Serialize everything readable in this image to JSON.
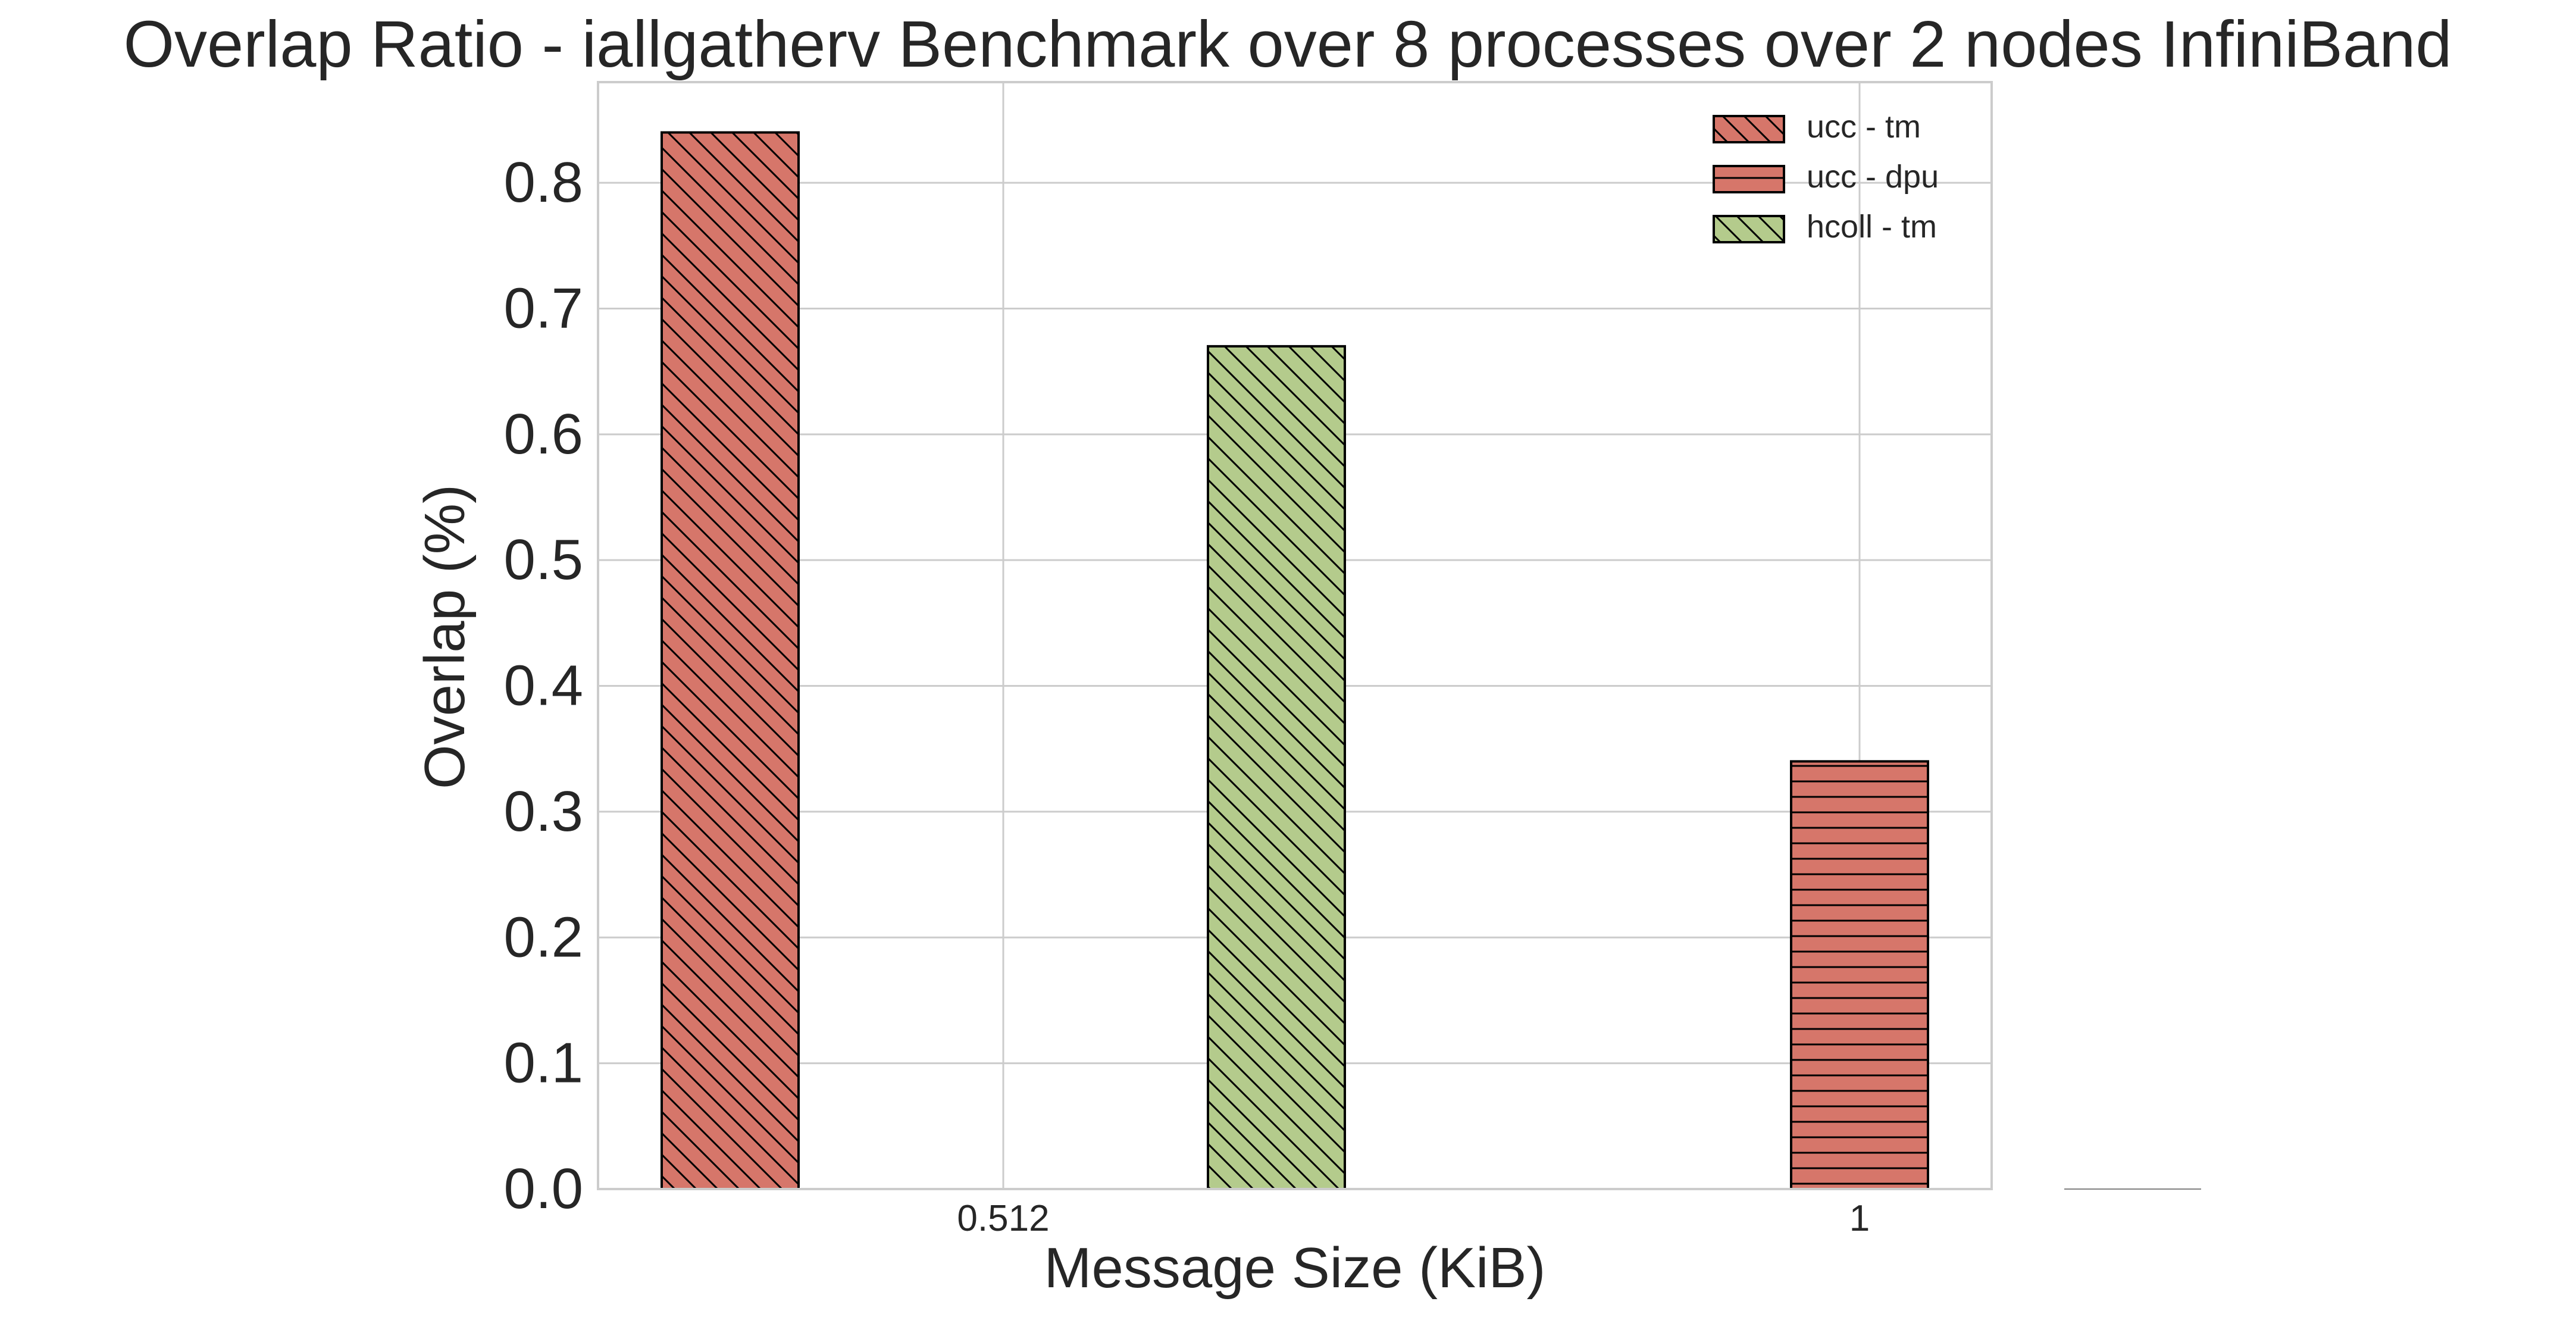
{
  "chart_data": {
    "type": "bar",
    "title": "Overlap Ratio - iallgatherv Benchmark over 8 processes over 2 nodes InfiniBand",
    "xlabel": "Message Size (KiB)",
    "ylabel": "Overlap (%)",
    "categories": [
      "0.512",
      "1"
    ],
    "ylim": [
      0,
      0.88
    ],
    "yticks": [
      "0.0",
      "0.1",
      "0.2",
      "0.3",
      "0.4",
      "0.5",
      "0.6",
      "0.7",
      "0.8"
    ],
    "grid": true,
    "legend_position": "top-right",
    "series": [
      {
        "name": "ucc - tm",
        "values": [
          0.84,
          0.0
        ],
        "color": "#d6766a",
        "hatch": "diagonal"
      },
      {
        "name": "ucc - dpu",
        "values": [
          0.0,
          0.34
        ],
        "color": "#d6766a",
        "hatch": "horizontal"
      },
      {
        "name": "hcoll - tm",
        "values": [
          0.67,
          0.0
        ],
        "color": "#b4cb8c",
        "hatch": "diagonal"
      }
    ]
  }
}
